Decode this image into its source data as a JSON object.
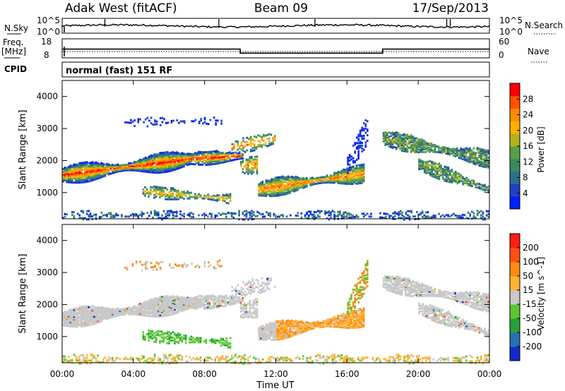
{
  "header": {
    "title": "Adak West (fitACF)",
    "beam": "Beam 09",
    "date": "17/Sep/2013"
  },
  "panels": {
    "nsky_label": "N.Sky",
    "nsearch_label": "N.Search",
    "freq_label_1": "Freq.",
    "freq_label_2": "[MHz]",
    "nave_label": "Nave",
    "cpid_label": "CPID",
    "cpid_value": "normal (fast) 151 RF",
    "noise_ticks": [
      "10^5",
      "10^0"
    ],
    "freq_ticks": [
      "18",
      "8"
    ],
    "nave_ticks": [
      "60",
      "0"
    ]
  },
  "chart_data": [
    {
      "type": "heatmap",
      "panel": "power",
      "xlabel": "Time UT",
      "ylabel": "Slant Range [km]",
      "x_ticks": [
        "00:00",
        "04:00",
        "08:00",
        "12:00",
        "16:00",
        "20:00",
        "00:00"
      ],
      "y_ticks": [
        1000,
        2000,
        3000,
        4000
      ],
      "xlim_hours": [
        0,
        24
      ],
      "ylim_km": [
        180,
        4500
      ],
      "colorbar": {
        "label": "Power [dB]",
        "ticks": [
          4,
          8,
          12,
          16,
          20,
          24,
          28
        ],
        "colors": [
          "#0020ff",
          "#2040c8",
          "#2e6e8c",
          "#3a8c5a",
          "#5aa046",
          "#b4b41e",
          "#ffb000",
          "#ff8c00",
          "#ff5000",
          "#ff0000"
        ]
      }
    },
    {
      "type": "heatmap",
      "panel": "velocity",
      "xlabel": "Time UT",
      "ylabel": "Slant Range [km]",
      "x_ticks": [
        "00:00",
        "04:00",
        "08:00",
        "12:00",
        "16:00",
        "20:00",
        "00:00"
      ],
      "y_ticks": [
        1000,
        2000,
        3000,
        4000
      ],
      "xlim_hours": [
        0,
        24
      ],
      "ylim_km": [
        180,
        4500
      ],
      "colorbar": {
        "label": "Velocity [m s^-1]",
        "ticks": [
          200,
          100,
          50,
          15,
          -15,
          -50,
          -100,
          -200
        ],
        "colors": [
          "#1428c8",
          "#2870b4",
          "#28a03c",
          "#5ac832",
          "#c8c8c8",
          "#ffb432",
          "#ff8c14",
          "#ff5014",
          "#ff1e14"
        ]
      }
    }
  ],
  "frequency_mhz": [
    {
      "start_h": 0,
      "end_h": 10,
      "value": 12.6
    },
    {
      "start_h": 10,
      "end_h": 18,
      "value": 10.5
    },
    {
      "start_h": 18,
      "end_h": 24,
      "value": 12.6
    }
  ]
}
